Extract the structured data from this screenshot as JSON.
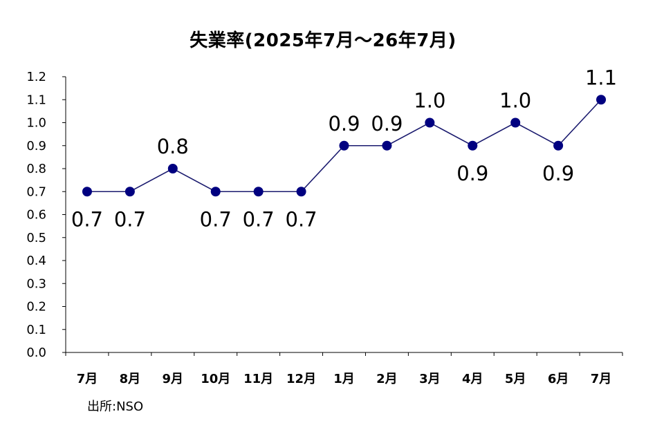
{
  "chart_data": {
    "type": "line",
    "title": "失業率(2025年7月～26年7月)",
    "categories": [
      "7月",
      "8月",
      "9月",
      "10月",
      "11月",
      "12月",
      "1月",
      "2月",
      "3月",
      "4月",
      "5月",
      "6月",
      "7月"
    ],
    "series": [
      {
        "values": [
          0.7,
          0.7,
          0.8,
          0.7,
          0.7,
          0.7,
          0.9,
          0.9,
          1.0,
          0.9,
          1.0,
          0.9,
          1.1
        ]
      }
    ],
    "data_labels": [
      "0.7",
      "0.7",
      "0.8",
      "0.7",
      "0.7",
      "0.7",
      "0.9",
      "0.9",
      "1.0",
      "0.9",
      "1.0",
      "0.9",
      "1.1"
    ],
    "label_positions": [
      "below",
      "below",
      "above",
      "below",
      "below",
      "below",
      "above",
      "above",
      "above",
      "below",
      "above",
      "below",
      "above"
    ],
    "y_ticks": [
      "0.0",
      "0.1",
      "0.2",
      "0.3",
      "0.4",
      "0.5",
      "0.6",
      "0.7",
      "0.8",
      "0.9",
      "1.0",
      "1.1",
      "1.2"
    ],
    "ylim": [
      0,
      1.2
    ],
    "grid": false,
    "line_color": "#1a1a6e",
    "marker_color": "#000080"
  },
  "source_note": "出所:NSO"
}
